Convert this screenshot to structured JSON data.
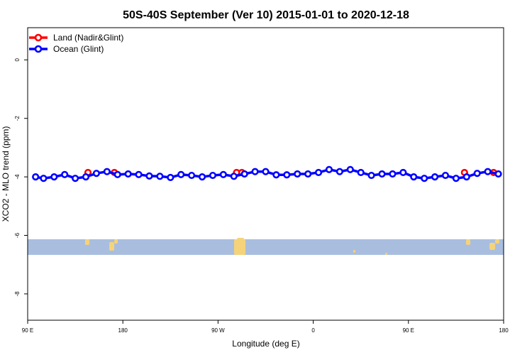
{
  "chart_data": {
    "type": "line",
    "title": "50S-40S September (Ver 10)   2015-01-01 to 2020-12-18",
    "xlabel": "Longitude (deg E)",
    "ylabel": "XCO2 - MLO trend (ppm)",
    "xlim": [
      90,
      540
    ],
    "ylim": [
      -8.9,
      1.1
    ],
    "x_ticks": [
      {
        "value": 90,
        "label": "90 E"
      },
      {
        "value": 180,
        "label": "180"
      },
      {
        "value": 270,
        "label": "90 W"
      },
      {
        "value": 360,
        "label": "0"
      },
      {
        "value": 450,
        "label": "90 E"
      },
      {
        "value": 540,
        "label": "180"
      }
    ],
    "y_ticks": [
      {
        "value": 0,
        "label": "0"
      },
      {
        "value": -2,
        "label": "-2"
      },
      {
        "value": -4,
        "label": "-4"
      },
      {
        "value": -6,
        "label": "-6"
      },
      {
        "value": -8,
        "label": "-8"
      }
    ],
    "legend_position": "top-left",
    "land_strip": {
      "color": "#a9bedf",
      "land_color": "#f5d37a"
    },
    "series": [
      {
        "name": "Land (Nadir&Glint)",
        "color": "#ff0000",
        "x": [
          147.0,
          172.0,
          287.5,
          292.5,
          503.0,
          530.5
        ],
        "y": [
          -3.85,
          -3.85,
          -3.85,
          -3.85,
          -3.85,
          -3.85
        ]
      },
      {
        "name": "Ocean (Glint)",
        "color": "#0000ff",
        "x": [
          97.5,
          105.0,
          115.0,
          125.0,
          135.0,
          145.0,
          155.0,
          165.0,
          175.0,
          185.0,
          195.0,
          205.0,
          215.0,
          225.0,
          235.0,
          245.0,
          255.0,
          265.0,
          275.0,
          285.0,
          295.0,
          305.0,
          315.0,
          325.0,
          335.0,
          345.0,
          355.0,
          365.0,
          375.0,
          385.0,
          395.0,
          405.0,
          415.0,
          425.0,
          435.0,
          445.0,
          455.0,
          465.0,
          475.0,
          485.0,
          495.0,
          505.0,
          515.0,
          525.0,
          535.0
        ],
        "y": [
          -4.0,
          -4.05,
          -4.0,
          -3.92,
          -4.05,
          -4.0,
          -3.88,
          -3.82,
          -3.92,
          -3.9,
          -3.92,
          -3.97,
          -3.98,
          -4.02,
          -3.92,
          -3.95,
          -4.0,
          -3.95,
          -3.92,
          -3.98,
          -3.9,
          -3.82,
          -3.82,
          -3.93,
          -3.93,
          -3.9,
          -3.9,
          -3.85,
          -3.75,
          -3.82,
          -3.75,
          -3.85,
          -3.95,
          -3.9,
          -3.9,
          -3.85,
          -4.0,
          -4.05,
          -4.0,
          -3.95,
          -4.05,
          -4.0,
          -3.88,
          -3.82,
          -3.9
        ]
      }
    ]
  }
}
